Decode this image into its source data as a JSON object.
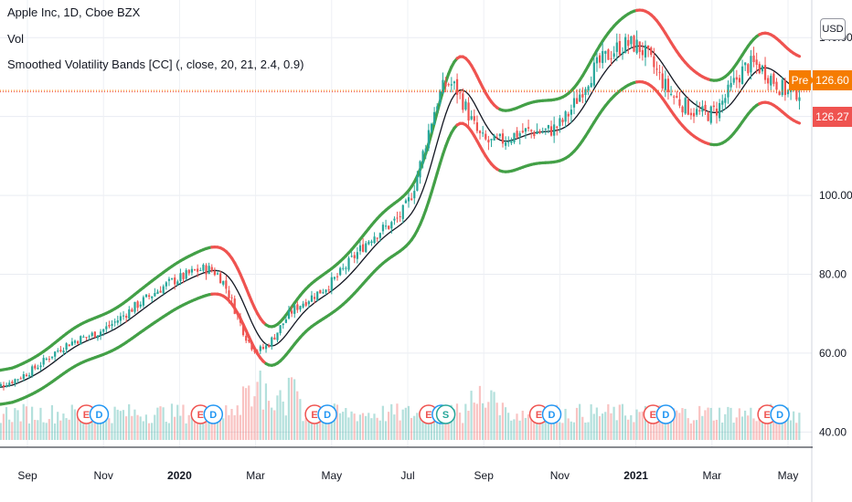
{
  "header": {
    "title": "Apple Inc, 1D, Cboe BZX",
    "volume_label": "Vol",
    "indicator_label": "Smoothed Volatility Bands [CC] (, close, 20, 21, 2.4, 0.9)"
  },
  "price_scale": {
    "currency_button": "USD",
    "pre_tag": "Pre",
    "pre_price": "126.60",
    "last_price": "126.27",
    "tick_labels": [
      "140.00",
      "120.00",
      "100.00",
      "80.00",
      "60.00",
      "40.00"
    ]
  },
  "time_axis": {
    "labels": [
      {
        "text": "Sep",
        "bold": false
      },
      {
        "text": "Nov",
        "bold": false
      },
      {
        "text": "2020",
        "bold": true
      },
      {
        "text": "Mar",
        "bold": false
      },
      {
        "text": "May",
        "bold": false
      },
      {
        "text": "Jul",
        "bold": false
      },
      {
        "text": "Sep",
        "bold": false
      },
      {
        "text": "Nov",
        "bold": false
      },
      {
        "text": "2021",
        "bold": true
      },
      {
        "text": "Mar",
        "bold": false
      },
      {
        "text": "May",
        "bold": false
      }
    ]
  },
  "event_markers": [
    {
      "letters": [
        "E",
        "D"
      ],
      "month_index": 2.55
    },
    {
      "letters": [
        "E",
        "D"
      ],
      "month_index": 5.55
    },
    {
      "letters": [
        "E",
        "D"
      ],
      "month_index": 8.55
    },
    {
      "letters": [
        "E",
        "D"
      ],
      "month_index": 11.55
    },
    {
      "letters": [
        "S"
      ],
      "month_index": 12.0
    },
    {
      "letters": [
        "E",
        "D"
      ],
      "month_index": 14.45
    },
    {
      "letters": [
        "E",
        "D"
      ],
      "month_index": 17.45
    },
    {
      "letters": [
        "E",
        "D"
      ],
      "month_index": 20.45
    }
  ],
  "colors": {
    "up": "#26a69a",
    "down": "#ef5350",
    "band_up": "#43a047",
    "band_down": "#ef5350",
    "basis": "#131722",
    "pre_market": "#f57c00",
    "earnings_marker": "#ef5350",
    "dividend_marker": "#2196f3",
    "split_marker": "#26a69a"
  },
  "chart_data": {
    "type": "candlestick",
    "title": "Apple Inc, 1D, Cboe BZX",
    "x_range": [
      "2019-08",
      "2021-05"
    ],
    "ylim": [
      38,
      147
    ],
    "y_ticks": [
      40,
      60,
      80,
      100,
      120,
      140
    ],
    "close_by_month": [
      {
        "x": "2019-08",
        "close": 51
      },
      {
        "x": "2019-09",
        "close": 55
      },
      {
        "x": "2019-10",
        "close": 62
      },
      {
        "x": "2019-11",
        "close": 66
      },
      {
        "x": "2019-12",
        "close": 73
      },
      {
        "x": "2020-01",
        "close": 79
      },
      {
        "x": "2020-02",
        "close": 80
      },
      {
        "x": "2020-03",
        "close": 61
      },
      {
        "x": "2020-04",
        "close": 71
      },
      {
        "x": "2020-05",
        "close": 78
      },
      {
        "x": "2020-06",
        "close": 89
      },
      {
        "x": "2020-07",
        "close": 98
      },
      {
        "x": "2020-08",
        "close": 128
      },
      {
        "x": "2020-09",
        "close": 114
      },
      {
        "x": "2020-10",
        "close": 116
      },
      {
        "x": "2020-11",
        "close": 118
      },
      {
        "x": "2020-12",
        "close": 133
      },
      {
        "x": "2021-01",
        "close": 138
      },
      {
        "x": "2021-02",
        "close": 125
      },
      {
        "x": "2021-03",
        "close": 121
      },
      {
        "x": "2021-04",
        "close": 133
      },
      {
        "x": "2021-05",
        "close": 126.27
      }
    ],
    "series": [
      {
        "name": "Smoothed Volatility Bands [CC] (, close, 20, 21, 2.4, 0.9)",
        "type": "bands"
      },
      {
        "name": "Vol",
        "type": "histogram"
      }
    ],
    "pre_market_price": 126.6,
    "last_price": 126.27,
    "grid": true
  }
}
